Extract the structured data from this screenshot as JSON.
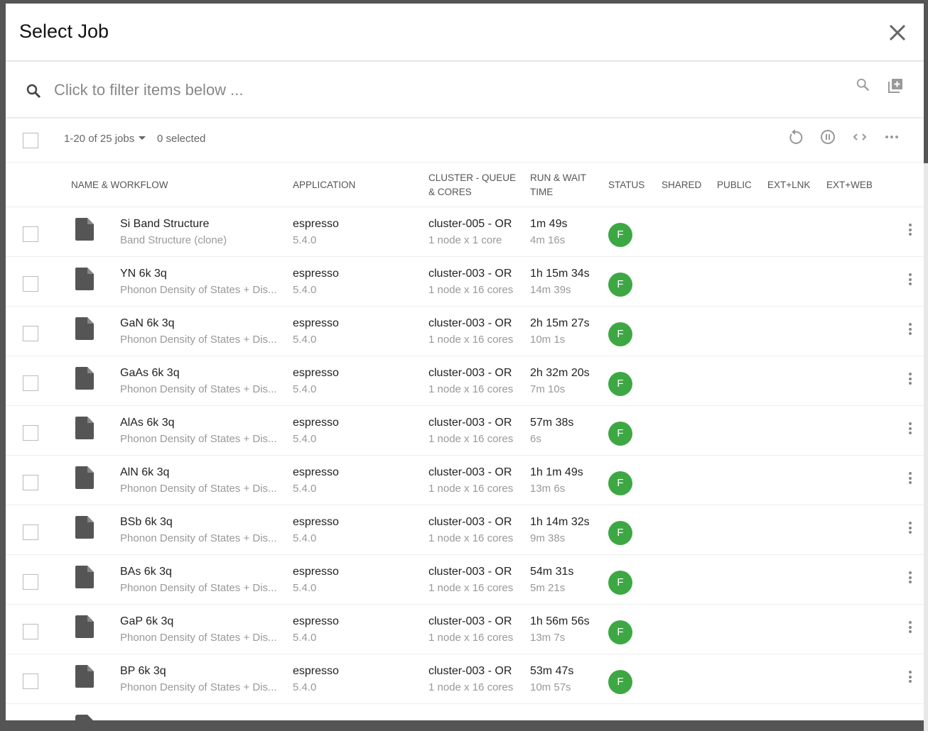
{
  "dialog": {
    "title": "Select Job"
  },
  "filter": {
    "placeholder": "Click to filter items below ..."
  },
  "toolbar": {
    "count": "1-20 of 25 jobs",
    "selected": "0 selected"
  },
  "columns": [
    "NAME & WORKFLOW",
    "APPLICATION",
    "CLUSTER - QUEUE",
    "& CORES",
    "RUN & WAIT",
    "TIME",
    "STATUS",
    "SHARED",
    "PUBLIC",
    "EXT+LNK",
    "EXT+WEB"
  ],
  "status_color": "#3da843",
  "rows": [
    {
      "name": "Si Band Structure",
      "workflow": "Band Structure (clone)",
      "app": "espresso",
      "ver": "5.4.0",
      "cluster": "cluster-005 - OR",
      "cores": "1 node x 1 core",
      "run": "1m 49s",
      "wait": "4m 16s",
      "status": "F"
    },
    {
      "name": "YN 6k 3q",
      "workflow": "Phonon Density of States + Dis...",
      "app": "espresso",
      "ver": "5.4.0",
      "cluster": "cluster-003 - OR",
      "cores": "1 node x 16 cores",
      "run": "1h 15m 34s",
      "wait": "14m 39s",
      "status": "F"
    },
    {
      "name": "GaN 6k 3q",
      "workflow": "Phonon Density of States + Dis...",
      "app": "espresso",
      "ver": "5.4.0",
      "cluster": "cluster-003 - OR",
      "cores": "1 node x 16 cores",
      "run": "2h 15m 27s",
      "wait": "10m 1s",
      "status": "F"
    },
    {
      "name": "GaAs 6k 3q",
      "workflow": "Phonon Density of States + Dis...",
      "app": "espresso",
      "ver": "5.4.0",
      "cluster": "cluster-003 - OR",
      "cores": "1 node x 16 cores",
      "run": "2h 32m 20s",
      "wait": "7m 10s",
      "status": "F"
    },
    {
      "name": "AlAs 6k 3q",
      "workflow": "Phonon Density of States + Dis...",
      "app": "espresso",
      "ver": "5.4.0",
      "cluster": "cluster-003 - OR",
      "cores": "1 node x 16 cores",
      "run": "57m 38s",
      "wait": "6s",
      "status": "F"
    },
    {
      "name": "AlN 6k 3q",
      "workflow": "Phonon Density of States + Dis...",
      "app": "espresso",
      "ver": "5.4.0",
      "cluster": "cluster-003 - OR",
      "cores": "1 node x 16 cores",
      "run": "1h 1m 49s",
      "wait": "13m 6s",
      "status": "F"
    },
    {
      "name": "BSb 6k 3q",
      "workflow": "Phonon Density of States + Dis...",
      "app": "espresso",
      "ver": "5.4.0",
      "cluster": "cluster-003 - OR",
      "cores": "1 node x 16 cores",
      "run": "1h 14m 32s",
      "wait": "9m 38s",
      "status": "F"
    },
    {
      "name": "BAs 6k 3q",
      "workflow": "Phonon Density of States + Dis...",
      "app": "espresso",
      "ver": "5.4.0",
      "cluster": "cluster-003 - OR",
      "cores": "1 node x 16 cores",
      "run": "54m 31s",
      "wait": "5m 21s",
      "status": "F"
    },
    {
      "name": "GaP 6k 3q",
      "workflow": "Phonon Density of States + Dis...",
      "app": "espresso",
      "ver": "5.4.0",
      "cluster": "cluster-003 - OR",
      "cores": "1 node x 16 cores",
      "run": "1h 56m 56s",
      "wait": "13m 7s",
      "status": "F"
    },
    {
      "name": "BP 6k 3q",
      "workflow": "Phonon Density of States + Dis...",
      "app": "espresso",
      "ver": "5.4.0",
      "cluster": "cluster-003 - OR",
      "cores": "1 node x 16 cores",
      "run": "53m 47s",
      "wait": "10m 57s",
      "status": "F"
    }
  ]
}
